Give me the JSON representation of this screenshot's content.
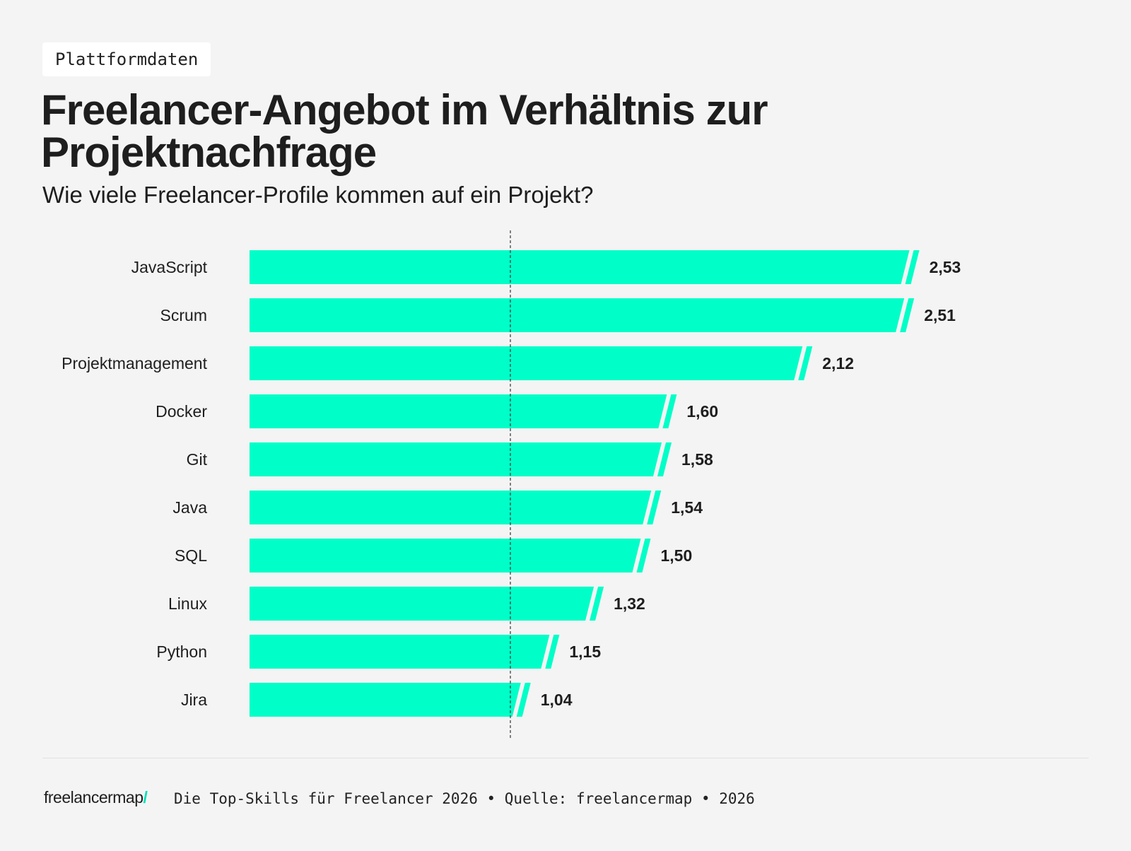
{
  "tag": "Plattformdaten",
  "title": "Freelancer-Angebot im Verhältnis zur Projektnachfrage",
  "subtitle": "Wie viele Freelancer-Profile kommen auf ein Projekt?",
  "footer": {
    "logo_text": "freelancermap",
    "logo_mark": "/",
    "text": "Die Top-Skills für Freelancer 2026 • Quelle: freelancermap • 2026"
  },
  "colors": {
    "bar": "#00ffc8",
    "text": "#1e1e1e",
    "reference_line": "#333333",
    "background": "#f4f4f4"
  },
  "chart_data": {
    "type": "bar",
    "orientation": "horizontal",
    "categories": [
      "JavaScript",
      "Scrum",
      "Projektmanagement",
      "Docker",
      "Git",
      "Java",
      "SQL",
      "Linux",
      "Python",
      "Jira"
    ],
    "values": [
      2.53,
      2.51,
      2.12,
      1.6,
      1.58,
      1.54,
      1.5,
      1.32,
      1.15,
      1.04
    ],
    "value_labels": [
      "2,53",
      "2,51",
      "2,12",
      "1,60",
      "1,58",
      "1,54",
      "1,50",
      "1,32",
      "1,15",
      "1,04"
    ],
    "reference_line": 1.0,
    "reference_line_style": "dashed",
    "xlim": [
      0,
      2.6
    ],
    "grid": false,
    "legend": "none"
  }
}
